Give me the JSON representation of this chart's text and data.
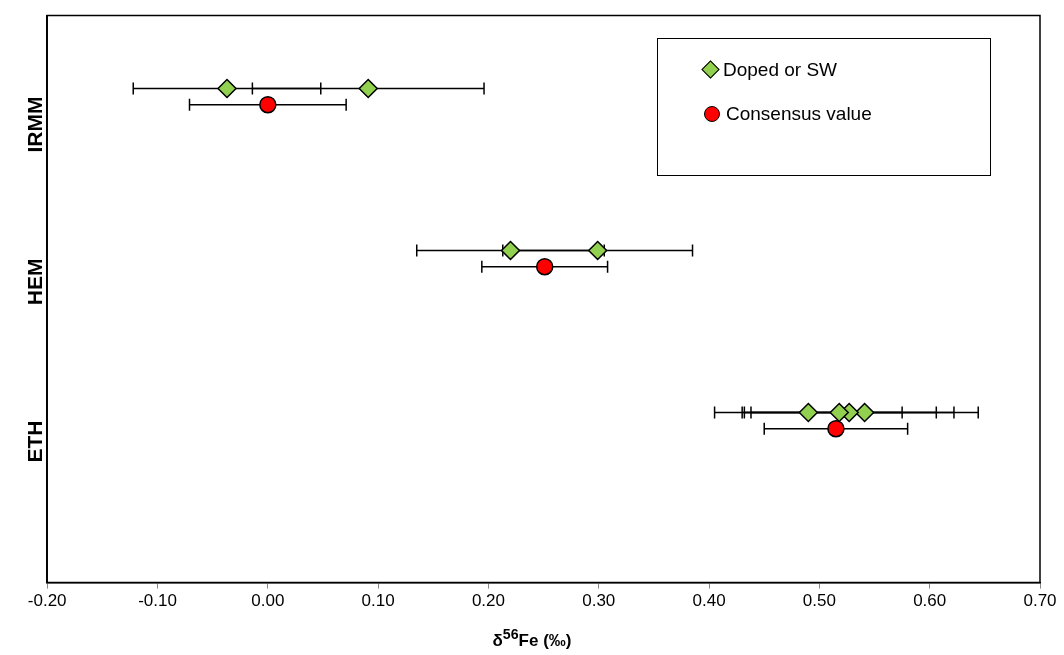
{
  "chart_data": {
    "type": "scatter",
    "orientation": "horizontal",
    "xlabel": "δ$^{56}$Fe (‰)",
    "categories": [
      "IRMM",
      "HEM",
      "ETH"
    ],
    "xlim": [
      -0.2,
      0.7
    ],
    "xticks": [
      {
        "value": -0.2,
        "label": "-0.20"
      },
      {
        "value": -0.1,
        "label": "-0.10"
      },
      {
        "value": 0,
        "label": "0.00"
      },
      {
        "value": 0.1,
        "label": "0.10"
      },
      {
        "value": 0.2,
        "label": "0.20"
      },
      {
        "value": 0.3,
        "label": "0.30"
      },
      {
        "value": 0.4,
        "label": "0.40"
      },
      {
        "value": 0.5,
        "label": "0.50"
      },
      {
        "value": 0.6,
        "label": "0.60"
      },
      {
        "value": 0.7,
        "label": "0.70"
      }
    ],
    "grid": false,
    "legend": "top right",
    "series": [
      {
        "name": "Doped or SW",
        "color": "#92d050",
        "marker": "diamond",
        "values": [
          -0.037,
          0.22,
          0.49
        ],
        "errors": [
          0.085,
          0.085,
          0.085
        ]
      },
      {
        "color": "#92d050",
        "marker": "diamond",
        "values": [
          0.091,
          0.299,
          0.518
        ],
        "errors": [
          0.105,
          0.086,
          0.088
        ]
      },
      {
        "color": "#92d050",
        "marker": "diamond",
        "values": [
          null,
          null,
          0.527
        ],
        "errors": [
          null,
          null,
          0.095
        ]
      },
      {
        "color": "#92d050",
        "marker": "diamond",
        "values": [
          null,
          null,
          0.541
        ],
        "errors": [
          null,
          null,
          0.103
        ]
      },
      {
        "name": "Consensus value",
        "color": "#ff0000",
        "marker": "circle",
        "values": [
          0,
          0.251,
          0.515
        ],
        "errors": [
          0.071,
          0.057,
          0.065
        ]
      }
    ]
  }
}
